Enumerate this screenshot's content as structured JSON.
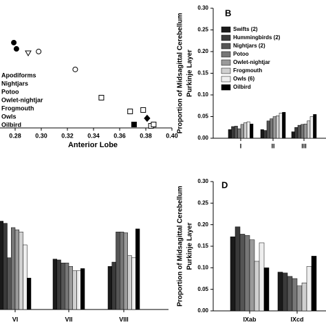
{
  "chart_data": [
    {
      "type": "scatter",
      "xlabel": "Anterior Lobe",
      "xlim": [
        0.28,
        0.4
      ],
      "xticks": [
        0.28,
        {
          "value": 0.3,
          "label": "0.30"
        },
        0.32,
        0.34,
        0.36,
        0.38,
        {
          "value": 0.4,
          "label": "0.40"
        }
      ],
      "ylim": [
        0,
        1
      ],
      "series": [
        {
          "name": "Apodiforms",
          "color": "#000000",
          "marker": "circle-filled",
          "x": [
            0.279,
            0.281
          ],
          "y": [
            0.795,
            0.737
          ]
        },
        {
          "name": "Nightjars",
          "color": "#000000",
          "marker": "triangle-open",
          "x": [
            0.29
          ],
          "y": [
            0.699
          ]
        },
        {
          "name": "Potoo",
          "color": "#000000",
          "marker": "circle-open",
          "x": [
            0.298
          ],
          "y": [
            0.712
          ]
        },
        {
          "name": "Owlet-nightjar",
          "color": "#000000",
          "marker": "circle-open",
          "x": [
            0.326
          ],
          "y": [
            0.545
          ]
        },
        {
          "name": "Frogmouth",
          "color": "#000000",
          "marker": "diamond-filled",
          "x": [
            0.381
          ],
          "y": [
            0.09
          ]
        },
        {
          "name": "Owls",
          "color": "#000000",
          "marker": "square-open",
          "x": [
            0.346,
            0.368,
            0.378,
            0.384,
            0.386
          ],
          "y": [
            0.282,
            0.154,
            0.167,
            0.019,
            0.032
          ]
        },
        {
          "name": "Oilbird",
          "color": "#000000",
          "marker": "square-filled",
          "x": [
            0.371
          ],
          "y": [
            0.032
          ]
        }
      ]
    },
    {
      "type": "bar",
      "panel": "B",
      "ylabel": [
        "Proportion of Midsagittal Cerebellum",
        "Purkinje Layer"
      ],
      "categories": [
        "I",
        "II",
        "III"
      ],
      "ylim": [
        0,
        0.3
      ],
      "yticks": [
        {
          "value": 0,
          "label": "0.00"
        },
        0.05,
        {
          "value": 0.1,
          "label": "0.10"
        },
        0.15,
        {
          "value": 0.2,
          "label": "0.20"
        },
        0.25,
        {
          "value": 0.3,
          "label": "0.30"
        }
      ],
      "legend": "upper-left",
      "series": [
        {
          "name": "Swifts (2)",
          "color": "#1a1a1a",
          "values": [
            0.02,
            0.02,
            0.015
          ]
        },
        {
          "name": "Hummingbirds (2)",
          "color": "#3a3a3a",
          "values": [
            0.027,
            0.018,
            0.025
          ]
        },
        {
          "name": "Nightjars (2)",
          "color": "#555555",
          "values": [
            0.028,
            0.04,
            0.03
          ]
        },
        {
          "name": "Potoo",
          "color": "#777777",
          "values": [
            0.022,
            0.045,
            0.032
          ]
        },
        {
          "name": "Owlet-nightjar",
          "color": "#9a9a9a",
          "values": [
            0.032,
            0.05,
            0.033
          ]
        },
        {
          "name": "Frogmouth",
          "color": "#d0d0d0",
          "values": [
            0.036,
            0.052,
            0.04
          ]
        },
        {
          "name": "Owls (6)",
          "color": "#eeeeee",
          "values": [
            0.038,
            0.058,
            0.05
          ]
        },
        {
          "name": "Oilbird",
          "color": "#000000",
          "values": [
            0.033,
            0.06,
            0.055
          ]
        }
      ]
    },
    {
      "type": "bar",
      "categories": [
        "VI",
        "VII",
        "VIII"
      ],
      "ylim": [
        0,
        0.3
      ],
      "series": [
        {
          "color": "#1a1a1a",
          "values": [
            0.205,
            0.117,
            0.1
          ]
        },
        {
          "color": "#3a3a3a",
          "values": [
            0.2,
            0.115,
            0.11
          ]
        },
        {
          "color": "#555555",
          "values": [
            0.12,
            0.108,
            0.18
          ]
        },
        {
          "color": "#777777",
          "values": [
            0.19,
            0.108,
            0.18
          ]
        },
        {
          "color": "#9a9a9a",
          "values": [
            0.185,
            0.1,
            0.178
          ]
        },
        {
          "color": "#d0d0d0",
          "values": [
            0.18,
            0.09,
            0.125
          ]
        },
        {
          "color": "#eeeeee",
          "values": [
            0.15,
            0.09,
            0.12
          ]
        },
        {
          "color": "#000000",
          "values": [
            0.073,
            0.095,
            0.187
          ]
        }
      ]
    },
    {
      "type": "bar",
      "panel": "D",
      "ylabel": [
        "Proportion of Midsagittal Cerebellum",
        "Purkinje Layer"
      ],
      "categories": [
        "IXab",
        "IXcd"
      ],
      "ylim": [
        0,
        0.3
      ],
      "yticks": [
        {
          "value": 0,
          "label": "0.00"
        },
        0.05,
        {
          "value": 0.1,
          "label": "0.10"
        },
        0.15,
        {
          "value": 0.2,
          "label": "0.20"
        },
        0.25,
        {
          "value": 0.3,
          "label": "0.30"
        }
      ],
      "series": [
        {
          "color": "#1a1a1a",
          "values": [
            0.172,
            0.09
          ]
        },
        {
          "color": "#3a3a3a",
          "values": [
            0.195,
            0.088
          ]
        },
        {
          "color": "#555555",
          "values": [
            0.178,
            0.08
          ]
        },
        {
          "color": "#777777",
          "values": [
            0.175,
            0.075
          ]
        },
        {
          "color": "#9a9a9a",
          "values": [
            0.165,
            0.058
          ]
        },
        {
          "color": "#d0d0d0",
          "values": [
            0.115,
            0.065
          ]
        },
        {
          "color": "#eeeeee",
          "values": [
            0.158,
            0.103
          ]
        },
        {
          "color": "#000000",
          "values": [
            0.1,
            0.127
          ]
        }
      ]
    }
  ]
}
